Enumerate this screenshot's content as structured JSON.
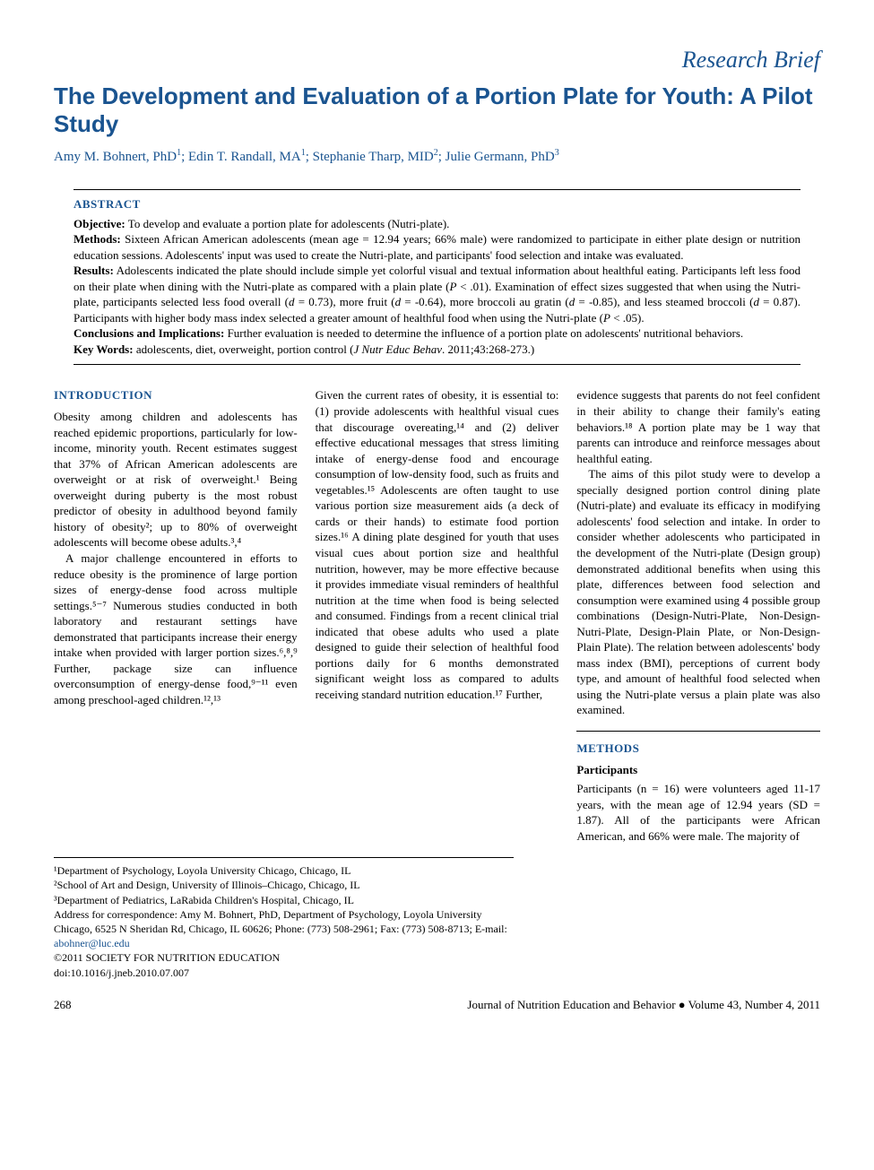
{
  "sectionLabel": "Research Brief",
  "title": "The Development and Evaluation of a Portion Plate for Youth: A Pilot Study",
  "authors": [
    {
      "name": "Amy M. Bohnert, PhD",
      "aff": "1"
    },
    {
      "name": "Edin T. Randall, MA",
      "aff": "1"
    },
    {
      "name": "Stephanie Tharp, MID",
      "aff": "2"
    },
    {
      "name": "Julie Germann, PhD",
      "aff": "3"
    }
  ],
  "abstract": {
    "heading": "ABSTRACT",
    "objectiveLabel": "Objective:",
    "objective": " To develop and evaluate a portion plate for adolescents (Nutri-plate).",
    "methodsLabel": "Methods:",
    "methods": " Sixteen African American adolescents (mean age = 12.94 years; 66% male) were randomized to participate in either plate design or nutrition education sessions. Adolescents' input was used to create the Nutri-plate, and participants' food selection and intake was evaluated.",
    "resultsLabel": "Results:",
    "results": " Adolescents indicated the plate should include simple yet colorful visual and textual information about healthful eating. Participants left less food on their plate when dining with the Nutri-plate as compared with a plain plate (P < .01). Examination of effect sizes suggested that when using the Nutri-plate, participants selected less food overall (d = 0.73), more fruit (d = -0.64), more broccoli au gratin (d = -0.85), and less steamed broccoli (d = 0.87). Participants with higher body mass index selected a greater amount of healthful food when using the Nutri-plate (P < .05).",
    "conclusionsLabel": "Conclusions and Implications:",
    "conclusions": " Further evaluation is needed to determine the influence of a portion plate on adolescents' nutritional behaviors.",
    "keywordsLabel": "Key Words:",
    "keywords": " adolescents, diet, overweight, portion control (J Nutr Educ Behav. 2011;43:268-273.)"
  },
  "introHeading": "INTRODUCTION",
  "col1": {
    "p1": "Obesity among children and adolescents has reached epidemic proportions, particularly for low-income, minority youth. Recent estimates suggest that 37% of African American adolescents are overweight or at risk of overweight.¹ Being overweight during puberty is the most robust predictor of obesity in adulthood beyond family history of obesity²; up to 80% of overweight adolescents will become obese adults.³,⁴",
    "p2": "A major challenge encountered in efforts to reduce obesity is the prominence of large portion sizes of energy-dense food across multiple settings.⁵⁻⁷ Numerous studies conducted in both laboratory and restaurant settings have demonstrated that participants increase their energy intake when provided with larger portion sizes.⁶,⁸,⁹ Further, package size can influence overconsumption of energy-dense food,⁹⁻¹¹ even among preschool-aged children.¹²,¹³"
  },
  "col2": {
    "p1": "Given the current rates of obesity, it is essential to: (1) provide adolescents with healthful visual cues that discourage overeating,¹⁴ and (2) deliver effective educational messages that stress limiting intake of energy-dense food and encourage consumption of low-density food, such as fruits and vegetables.¹⁵ Adolescents are often taught to use various portion size measurement aids (a deck of cards or their hands) to estimate food portion sizes.¹⁶ A dining plate desgined for youth that uses visual cues about portion size and healthful nutrition, however, may be more effective because it provides immediate visual reminders of healthful nutrition at the time when food is being selected and consumed. Findings from a recent clinical trial indicated that obese adults who used a plate designed to guide their selection of healthful food portions daily for 6 months demonstrated significant weight loss as compared to adults receiving standard nutrition education.¹⁷ Further,"
  },
  "col3": {
    "p1": "evidence suggests that parents do not feel confident in their ability to change their family's eating behaviors.¹⁸ A portion plate may be 1 way that parents can introduce and reinforce messages about healthful eating.",
    "p2": "The aims of this pilot study were to develop a specially designed portion control dining plate (Nutri-plate) and evaluate its efficacy in modifying adolescents' food selection and intake. In order to consider whether adolescents who participated in the development of the Nutri-plate (Design group) demonstrated additional benefits when using this plate, differences between food selection and consumption were examined using 4 possible group combinations (Design-Nutri-Plate, Non-Design-Nutri-Plate, Design-Plain Plate, or Non-Design-Plain Plate). The relation between adolescents' body mass index (BMI), perceptions of current body type, and amount of healthful food selected when using the Nutri-plate versus a plain plate was also examined.",
    "methodsHeading": "METHODS",
    "participantsHeading": "Participants",
    "p3": "Participants (n = 16) were volunteers aged 11-17 years, with the mean age of 12.94 years (SD = 1.87). All of the participants were African American, and 66% were male. The majority of"
  },
  "affiliations": {
    "a1": "¹Department of Psychology, Loyola University Chicago, Chicago, IL",
    "a2": "²School of Art and Design, University of Illinois–Chicago, Chicago, IL",
    "a3": "³Department of Pediatrics, LaRabida Children's Hospital, Chicago, IL",
    "correspondence": "Address for correspondence: Amy M. Bohnert, PhD, Department of Psychology, Loyola University Chicago, 6525 N Sheridan Rd, Chicago, IL 60626; Phone: (773) 508-2961; Fax: (773) 508-8713; E-mail: ",
    "email": "abohner@luc.edu",
    "copyright": "©2011 SOCIETY FOR NUTRITION EDUCATION",
    "doi": "doi:10.1016/j.jneb.2010.07.007"
  },
  "footer": {
    "pageNum": "268",
    "journal": "Journal of Nutrition Education and Behavior ● Volume 43, Number 4, 2011"
  }
}
